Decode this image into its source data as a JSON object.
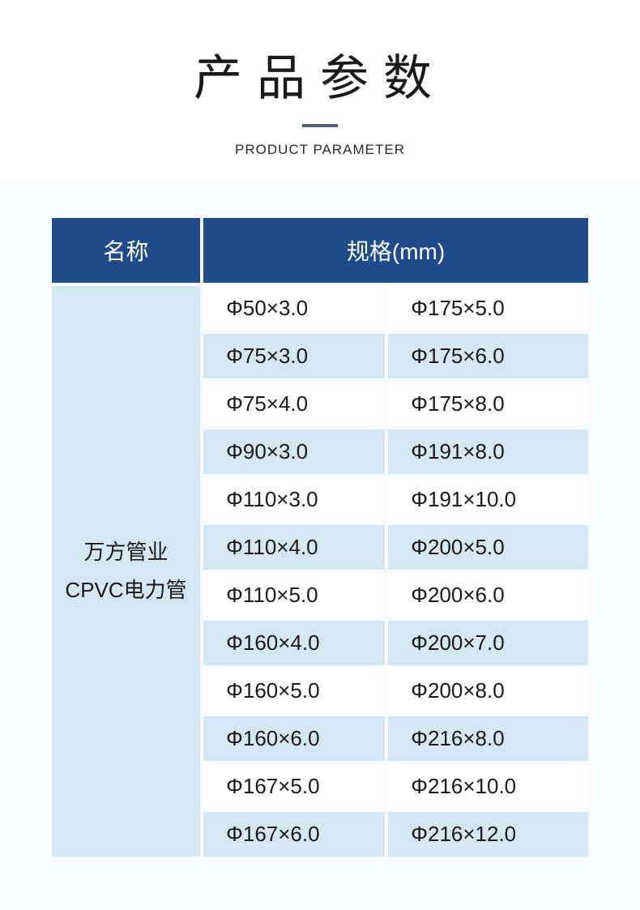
{
  "header": {
    "title": "产品参数",
    "subtitle": "PRODUCT PARAMETER"
  },
  "table": {
    "columns": {
      "name": "名称",
      "spec": "规格(mm)"
    },
    "product_name_line1": "万方管业",
    "product_name_line2": "CPVC电力管",
    "specs": [
      {
        "left": "Φ50×3.0",
        "right": "Φ175×5.0"
      },
      {
        "left": "Φ75×3.0",
        "right": "Φ175×6.0"
      },
      {
        "left": "Φ75×4.0",
        "right": "Φ175×8.0"
      },
      {
        "left": "Φ90×3.0",
        "right": "Φ191×8.0"
      },
      {
        "left": "Φ110×3.0",
        "right": "Φ191×10.0"
      },
      {
        "left": "Φ110×4.0",
        "right": "Φ200×5.0"
      },
      {
        "left": "Φ110×5.0",
        "right": "Φ200×6.0"
      },
      {
        "left": "Φ160×4.0",
        "right": "Φ200×7.0"
      },
      {
        "left": "Φ160×5.0",
        "right": "Φ200×8.0"
      },
      {
        "left": "Φ160×6.0",
        "right": "Φ216×8.0"
      },
      {
        "left": "Φ167×5.0",
        "right": "Φ216×10.0"
      },
      {
        "left": "Φ167×6.0",
        "right": "Φ216×12.0"
      }
    ],
    "colors": {
      "header_bg": "#1f4b8a",
      "header_text": "#ffffff",
      "name_cell_bg": "#d3e7f5",
      "row_odd_bg": "#ffffff",
      "row_even_bg": "#d3e7f5",
      "text_color": "#1a1a1a",
      "page_bg": "#f7fbfe"
    },
    "typography": {
      "title_fontsize": 60,
      "header_fontsize": 28,
      "cell_fontsize": 26,
      "subtitle_fontsize": 17
    }
  }
}
